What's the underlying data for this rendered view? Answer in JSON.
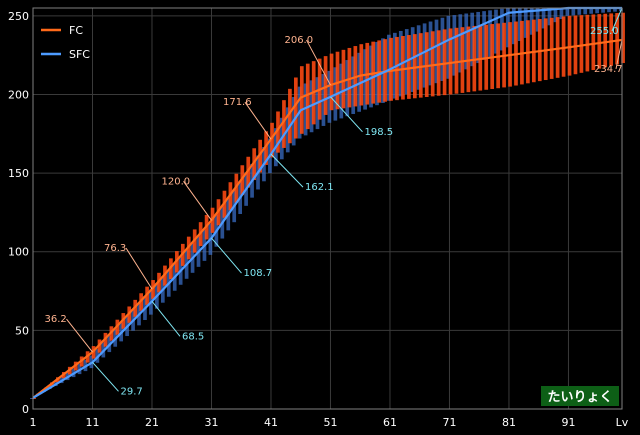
{
  "chart_data": {
    "type": "line",
    "xlim": [
      1,
      100
    ],
    "ylim": [
      0,
      255
    ],
    "x_ticks": [
      1,
      11,
      21,
      31,
      41,
      51,
      61,
      71,
      81,
      91
    ],
    "x_end_label": "Lv",
    "y_ticks": [
      0,
      50,
      100,
      150,
      200,
      250
    ],
    "grid": true,
    "legend_position": "top-left",
    "badge": "たいりょく",
    "colors": {
      "background": "#000000",
      "plot_border": "#808080",
      "grid": "#3a3a3a",
      "fc_line": "#ff6a1a",
      "fc_band": "#ff4a12",
      "fc_label": "#ffb38f",
      "sfc_line": "#4d9bff",
      "sfc_band": "#3a6fc9",
      "sfc_label": "#7fe6f2",
      "badge_bg": "#0d5f16"
    },
    "series": [
      {
        "name": "FC",
        "color": "#ff6a1a",
        "x": [
          1,
          11,
          21,
          31,
          41,
          46,
          51,
          56,
          61,
          71,
          81,
          91,
          100
        ],
        "y": [
          7,
          36.2,
          76.3,
          120.0,
          171.6,
          198,
          206.0,
          212,
          215,
          220,
          225,
          230,
          234.7
        ],
        "band_low": [
          7,
          32,
          70,
          112,
          160,
          175,
          190,
          193,
          196,
          200,
          205,
          212,
          220
        ],
        "band_high": [
          7,
          40,
          82,
          128,
          182,
          218,
          226,
          232,
          236,
          242,
          246,
          250,
          252
        ]
      },
      {
        "name": "SFC",
        "color": "#4d9bff",
        "x": [
          1,
          11,
          21,
          31,
          41,
          46,
          51,
          61,
          71,
          81,
          91,
          100
        ],
        "y": [
          7,
          29.7,
          68.5,
          108.7,
          162.1,
          190,
          198.5,
          216,
          235,
          252,
          255.0,
          255.0
        ],
        "band_low": [
          7,
          26,
          60,
          98,
          150,
          172,
          182,
          196,
          210,
          230,
          250,
          253
        ],
        "band_high": [
          7,
          34,
          76,
          118,
          172,
          205,
          215,
          238,
          250,
          255,
          255,
          255
        ]
      }
    ],
    "annotations": [
      {
        "series": "FC",
        "text": "36.2",
        "x": 11,
        "y": 36.2,
        "dx": -48,
        "dy": -30
      },
      {
        "series": "FC",
        "text": "76.3",
        "x": 21,
        "y": 76.3,
        "dx": -48,
        "dy": -38
      },
      {
        "series": "FC",
        "text": "120.0",
        "x": 31,
        "y": 120.0,
        "dx": -50,
        "dy": -36
      },
      {
        "series": "FC",
        "text": "171.6",
        "x": 41,
        "y": 171.6,
        "dx": -48,
        "dy": -34
      },
      {
        "series": "FC",
        "text": "206.0",
        "x": 51,
        "y": 206.0,
        "dx": -46,
        "dy": -42
      },
      {
        "series": "FC",
        "text": "234.7",
        "x": 100,
        "y": 234.7,
        "dx": -28,
        "dy": 32
      },
      {
        "series": "SFC",
        "text": "29.7",
        "x": 11,
        "y": 29.7,
        "dx": 28,
        "dy": 32
      },
      {
        "series": "SFC",
        "text": "68.5",
        "x": 21,
        "y": 68.5,
        "dx": 30,
        "dy": 38
      },
      {
        "series": "SFC",
        "text": "108.7",
        "x": 31,
        "y": 108.7,
        "dx": 32,
        "dy": 38
      },
      {
        "series": "SFC",
        "text": "162.1",
        "x": 41,
        "y": 162.1,
        "dx": 34,
        "dy": 36
      },
      {
        "series": "SFC",
        "text": "198.5",
        "x": 51,
        "y": 198.5,
        "dx": 34,
        "dy": 38
      },
      {
        "series": "SFC",
        "text": "255.0",
        "x": 100,
        "y": 255.0,
        "dx": -32,
        "dy": 26
      }
    ]
  }
}
